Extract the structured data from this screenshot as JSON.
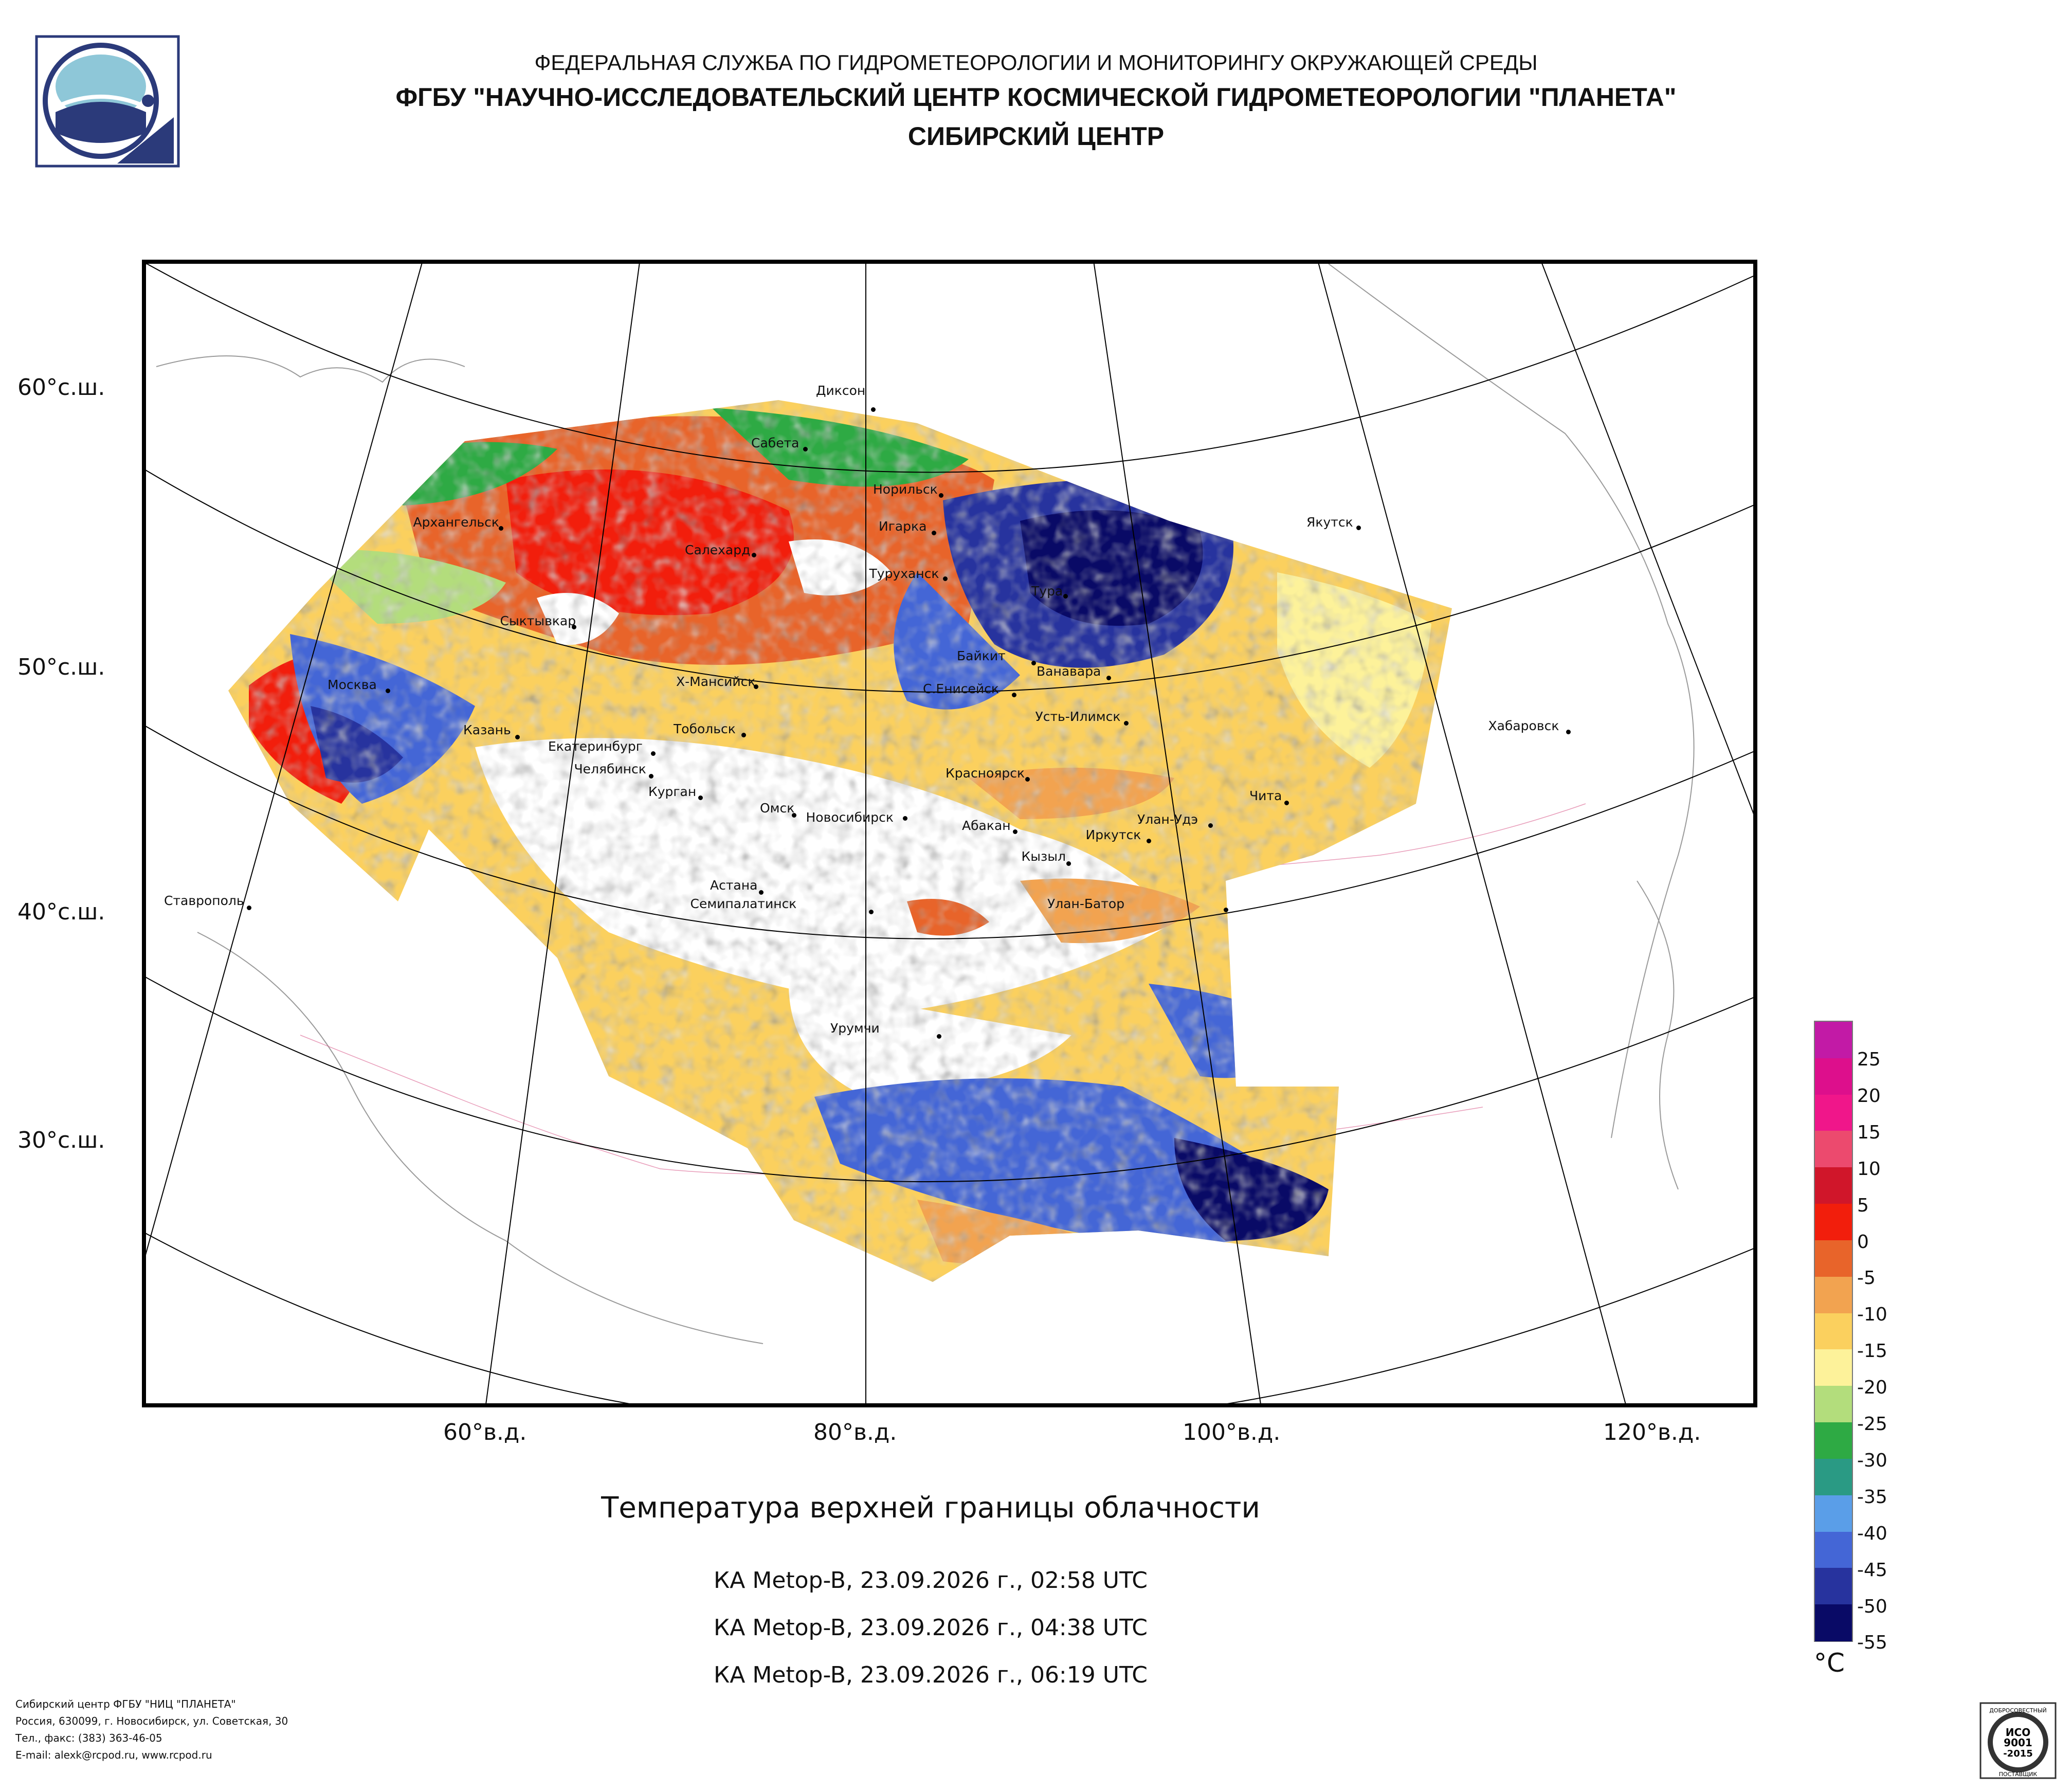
{
  "header": {
    "line1": "ФЕДЕРАЛЬНАЯ СЛУЖБА ПО ГИДРОМЕТЕОРОЛОГИИ И МОНИТОРИНГУ ОКРУЖАЮЩЕЙ СРЕДЫ",
    "line2": "ФГБУ \"НАУЧНО-ИССЛЕДОВАТЕЛЬСКИЙ ЦЕНТР КОСМИЧЕСКОЙ ГИДРОМЕТЕОРОЛОГИИ \"ПЛАНЕТА\"",
    "line3": "СИБИРСКИЙ ЦЕНТР"
  },
  "map": {
    "lat_labels": [
      "60°с.ш.",
      "50°с.ш.",
      "40°с.ш.",
      "30°с.ш."
    ],
    "lon_labels": [
      "60°в.д.",
      "80°в.д.",
      "100°в.д.",
      "120°в.д."
    ],
    "cities": [
      "Диксон",
      "Сабета",
      "Норильск",
      "Игарка",
      "Салехард",
      "Архангельск",
      "Туруханск",
      "Якутск",
      "Тура",
      "Сыктывкар",
      "Байкит",
      "Ванавара",
      "Х-Мансийск",
      "С.Енисейск",
      "Москва",
      "Усть-Илимск",
      "Казань",
      "Тобольск",
      "Екатеринбург",
      "Хабаровск",
      "Челябинск",
      "Курган",
      "Красноярск",
      "Чита",
      "Омск",
      "Новосибирск",
      "Абакан",
      "Улан-Удэ",
      "Иркутск",
      "Кызыл",
      "Астана",
      "Ставрополь",
      "Улан-Батор",
      "Семипалатинск",
      "Урумчи"
    ]
  },
  "product": {
    "title": "Температура верхней границы облачности",
    "passes": [
      "КА Metop-B, 23.09.2026 г., 02:58 UTC",
      "КА Metop-B, 23.09.2026 г., 04:38 UTC",
      "КА Metop-B, 23.09.2026 г., 06:19 UTC"
    ]
  },
  "legend": {
    "unit": "°C",
    "labels": [
      "25",
      "20",
      "15",
      "10",
      "5",
      "0",
      "-5",
      "-10",
      "-15",
      "-20",
      "-25",
      "-30",
      "-35",
      "-40",
      "-45",
      "-50",
      "-55"
    ],
    "colors": [
      "#c21aa6",
      "#dd0f8c",
      "#f0168a",
      "#ec4a6e",
      "#d0162a",
      "#f21e0c",
      "#e8642a",
      "#f2a350",
      "#fbd05e",
      "#fdf29a",
      "#b3dd7c",
      "#2eaa44",
      "#2a9a84",
      "#5a9ee8",
      "#4466d6",
      "#27339e",
      "#090a66"
    ]
  },
  "footer": {
    "lines": [
      "Сибирский центр ФГБУ \"НИЦ \"ПЛАНЕТА\"",
      "Россия, 630099, г. Новосибирск, ул. Советская, 30",
      "Тел., факс: (383) 363-46-05",
      "E-mail: alexk@rcpod.ru, www.rcpod.ru"
    ]
  },
  "iso_badge": {
    "arc_text": "ДОБРОСОВЕСТНЫЙ",
    "line1": "ИСО",
    "line2": "9001",
    "line3": "-2015",
    "bottom_text": "ПОСТАВЩИК"
  }
}
